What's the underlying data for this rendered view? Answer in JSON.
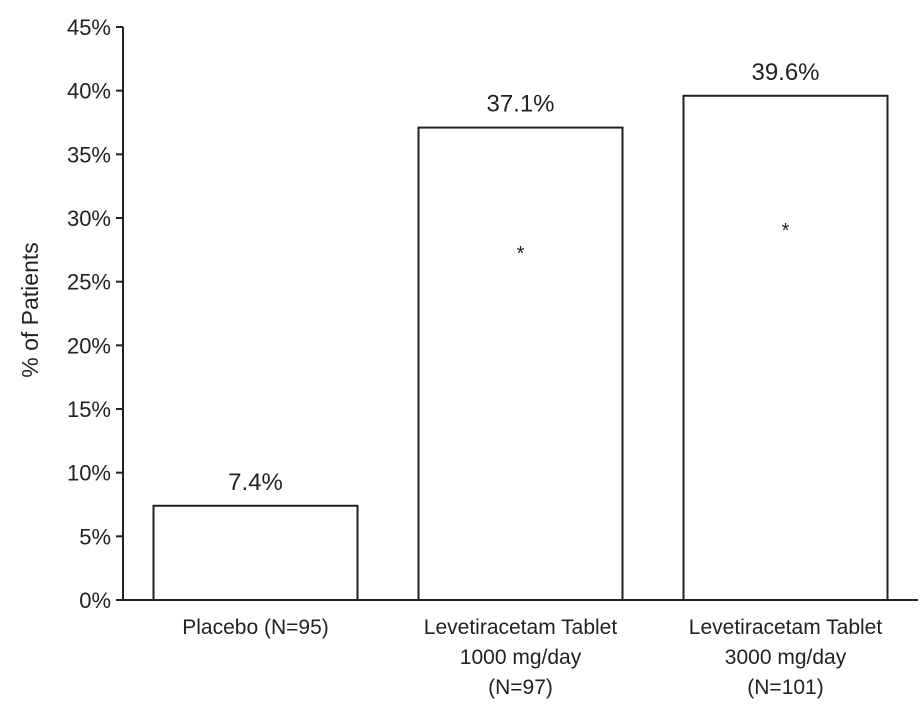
{
  "chart_data": {
    "type": "bar",
    "title": "",
    "xlabel": "",
    "ylabel": "% of Patients",
    "ylim": [
      0,
      45
    ],
    "yticks": [
      0,
      5,
      10,
      15,
      20,
      25,
      30,
      35,
      40,
      45
    ],
    "ytick_suffix": "%",
    "grid": false,
    "categories": [
      [
        "Placebo (N=95)"
      ],
      [
        "Levetiracetam Tablet",
        "1000 mg/day",
        "(N=97)"
      ],
      [
        "Levetiracetam Tablet",
        "3000 mg/day",
        "(N=101)"
      ]
    ],
    "values": [
      7.4,
      37.1,
      39.6
    ],
    "data_labels": [
      "7.4%",
      "37.1%",
      "39.6%"
    ],
    "annotations": [
      "",
      "*",
      "*"
    ],
    "colors": {
      "bar_fill": "#ffffff",
      "bar_stroke": "#222222",
      "axis": "#222222"
    }
  }
}
